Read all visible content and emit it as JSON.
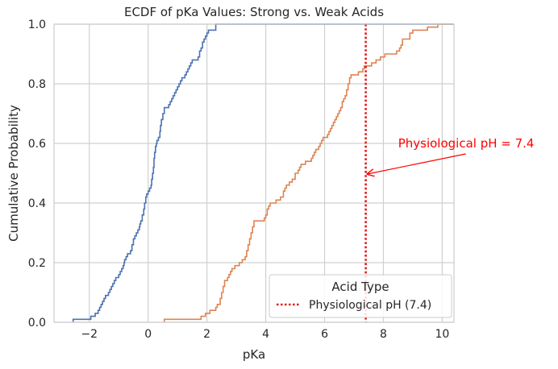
{
  "chart_data": {
    "type": "line",
    "title": "ECDF of pKa Values: Strong vs. Weak Acids",
    "xlabel": "pKa",
    "ylabel": "Cumulative Probability",
    "xlim": [
      -3.2,
      10.4
    ],
    "ylim": [
      0,
      1.0
    ],
    "xticks": [
      -2,
      0,
      2,
      4,
      6,
      8,
      10
    ],
    "xtick_labels": [
      "−2",
      "0",
      "2",
      "4",
      "6",
      "8",
      "10"
    ],
    "yticks": [
      0,
      0.2,
      0.4,
      0.6,
      0.8,
      1.0
    ],
    "ytick_labels": [
      "0.0",
      "0.2",
      "0.4",
      "0.6",
      "0.8",
      "1.0"
    ],
    "grid": true,
    "series": [
      {
        "color": "#4c72b0",
        "points": [
          [
            -2.55,
            0.01
          ],
          [
            -1.95,
            0.02
          ],
          [
            -1.8,
            0.03
          ],
          [
            -1.7,
            0.04
          ],
          [
            -1.65,
            0.05
          ],
          [
            -1.6,
            0.06
          ],
          [
            -1.55,
            0.07
          ],
          [
            -1.5,
            0.08
          ],
          [
            -1.45,
            0.09
          ],
          [
            -1.35,
            0.1
          ],
          [
            -1.3,
            0.11
          ],
          [
            -1.25,
            0.12
          ],
          [
            -1.2,
            0.13
          ],
          [
            -1.15,
            0.14
          ],
          [
            -1.1,
            0.15
          ],
          [
            -1.0,
            0.16
          ],
          [
            -0.95,
            0.17
          ],
          [
            -0.9,
            0.18
          ],
          [
            -0.85,
            0.19
          ],
          [
            -0.82,
            0.2
          ],
          [
            -0.8,
            0.21
          ],
          [
            -0.75,
            0.22
          ],
          [
            -0.7,
            0.23
          ],
          [
            -0.6,
            0.24
          ],
          [
            -0.55,
            0.26
          ],
          [
            -0.5,
            0.28
          ],
          [
            -0.45,
            0.29
          ],
          [
            -0.4,
            0.3
          ],
          [
            -0.35,
            0.31
          ],
          [
            -0.3,
            0.32
          ],
          [
            -0.28,
            0.33
          ],
          [
            -0.25,
            0.34
          ],
          [
            -0.2,
            0.36
          ],
          [
            -0.15,
            0.38
          ],
          [
            -0.12,
            0.4
          ],
          [
            -0.08,
            0.42
          ],
          [
            -0.05,
            0.43
          ],
          [
            0.0,
            0.44
          ],
          [
            0.05,
            0.45
          ],
          [
            0.1,
            0.46
          ],
          [
            0.12,
            0.48
          ],
          [
            0.15,
            0.5
          ],
          [
            0.18,
            0.52
          ],
          [
            0.2,
            0.55
          ],
          [
            0.22,
            0.57
          ],
          [
            0.25,
            0.59
          ],
          [
            0.28,
            0.6
          ],
          [
            0.3,
            0.61
          ],
          [
            0.35,
            0.62
          ],
          [
            0.4,
            0.64
          ],
          [
            0.42,
            0.66
          ],
          [
            0.45,
            0.68
          ],
          [
            0.5,
            0.7
          ],
          [
            0.55,
            0.72
          ],
          [
            0.7,
            0.73
          ],
          [
            0.75,
            0.74
          ],
          [
            0.8,
            0.75
          ],
          [
            0.85,
            0.76
          ],
          [
            0.9,
            0.77
          ],
          [
            0.95,
            0.78
          ],
          [
            1.0,
            0.79
          ],
          [
            1.05,
            0.8
          ],
          [
            1.1,
            0.81
          ],
          [
            1.15,
            0.82
          ],
          [
            1.25,
            0.83
          ],
          [
            1.3,
            0.84
          ],
          [
            1.35,
            0.85
          ],
          [
            1.4,
            0.86
          ],
          [
            1.45,
            0.87
          ],
          [
            1.5,
            0.88
          ],
          [
            1.7,
            0.89
          ],
          [
            1.75,
            0.91
          ],
          [
            1.8,
            0.92
          ],
          [
            1.85,
            0.94
          ],
          [
            1.9,
            0.95
          ],
          [
            1.95,
            0.96
          ],
          [
            2.0,
            0.97
          ],
          [
            2.05,
            0.98
          ],
          [
            2.3,
            1.0
          ]
        ]
      },
      {
        "color": "#dd8452",
        "points": [
          [
            0.55,
            0.01
          ],
          [
            1.8,
            0.02
          ],
          [
            1.95,
            0.03
          ],
          [
            2.1,
            0.04
          ],
          [
            2.3,
            0.05
          ],
          [
            2.35,
            0.06
          ],
          [
            2.45,
            0.08
          ],
          [
            2.5,
            0.1
          ],
          [
            2.55,
            0.12
          ],
          [
            2.6,
            0.14
          ],
          [
            2.7,
            0.15
          ],
          [
            2.75,
            0.16
          ],
          [
            2.8,
            0.17
          ],
          [
            2.85,
            0.18
          ],
          [
            2.95,
            0.19
          ],
          [
            3.1,
            0.2
          ],
          [
            3.2,
            0.21
          ],
          [
            3.3,
            0.22
          ],
          [
            3.35,
            0.24
          ],
          [
            3.4,
            0.26
          ],
          [
            3.45,
            0.28
          ],
          [
            3.5,
            0.3
          ],
          [
            3.55,
            0.32
          ],
          [
            3.6,
            0.34
          ],
          [
            3.95,
            0.35
          ],
          [
            4.0,
            0.36
          ],
          [
            4.05,
            0.38
          ],
          [
            4.1,
            0.39
          ],
          [
            4.15,
            0.4
          ],
          [
            4.35,
            0.41
          ],
          [
            4.5,
            0.42
          ],
          [
            4.6,
            0.44
          ],
          [
            4.65,
            0.45
          ],
          [
            4.7,
            0.46
          ],
          [
            4.8,
            0.47
          ],
          [
            4.9,
            0.48
          ],
          [
            5.0,
            0.5
          ],
          [
            5.1,
            0.51
          ],
          [
            5.15,
            0.52
          ],
          [
            5.2,
            0.53
          ],
          [
            5.35,
            0.54
          ],
          [
            5.55,
            0.55
          ],
          [
            5.6,
            0.56
          ],
          [
            5.65,
            0.57
          ],
          [
            5.7,
            0.58
          ],
          [
            5.8,
            0.59
          ],
          [
            5.85,
            0.6
          ],
          [
            5.9,
            0.61
          ],
          [
            5.95,
            0.62
          ],
          [
            6.1,
            0.63
          ],
          [
            6.15,
            0.64
          ],
          [
            6.2,
            0.65
          ],
          [
            6.25,
            0.66
          ],
          [
            6.3,
            0.67
          ],
          [
            6.35,
            0.68
          ],
          [
            6.4,
            0.69
          ],
          [
            6.45,
            0.7
          ],
          [
            6.5,
            0.71
          ],
          [
            6.55,
            0.72
          ],
          [
            6.6,
            0.74
          ],
          [
            6.65,
            0.75
          ],
          [
            6.7,
            0.76
          ],
          [
            6.75,
            0.78
          ],
          [
            6.8,
            0.8
          ],
          [
            6.85,
            0.82
          ],
          [
            6.9,
            0.83
          ],
          [
            7.15,
            0.84
          ],
          [
            7.3,
            0.85
          ],
          [
            7.35,
            0.86
          ],
          [
            7.6,
            0.87
          ],
          [
            7.75,
            0.88
          ],
          [
            7.9,
            0.89
          ],
          [
            8.05,
            0.9
          ],
          [
            8.45,
            0.91
          ],
          [
            8.55,
            0.92
          ],
          [
            8.6,
            0.93
          ],
          [
            8.65,
            0.95
          ],
          [
            8.9,
            0.97
          ],
          [
            9.0,
            0.98
          ],
          [
            9.5,
            0.99
          ],
          [
            9.85,
            1.0
          ]
        ]
      }
    ],
    "reference_line": {
      "x": 7.4,
      "color": "#e41a1c",
      "style": "dotted",
      "label": "Physiological pH (7.4)"
    },
    "annotation": {
      "text": "Physiological pH = 7.4",
      "point": [
        7.4,
        0.5
      ],
      "text_position": [
        8.5,
        0.6
      ],
      "color": "#ff0000"
    },
    "legend": {
      "title": "Acid Type",
      "placement": "lower-right",
      "entries": [
        {
          "label": "Physiological pH (7.4)",
          "color": "#e41a1c",
          "style": "dotted"
        }
      ]
    }
  }
}
